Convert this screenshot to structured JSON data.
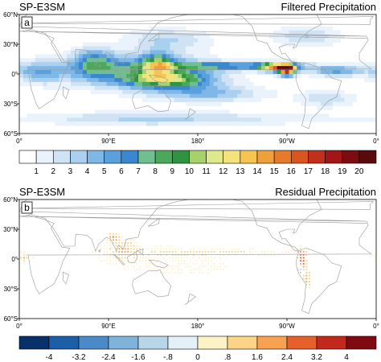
{
  "chart_data": [
    {
      "type": "heatmap",
      "panel_letter": "a",
      "left_title": "SP-E3SM",
      "right_title": "Filtered Precipitation",
      "x_ticks": [
        "0°",
        "90°E",
        "180°",
        "90°W",
        "0°"
      ],
      "y_ticks": [
        "60°N",
        "30°N",
        "0°",
        "30°S",
        "60°S"
      ],
      "colorbar_labels": [
        "1",
        "2",
        "3",
        "4",
        "5",
        "6",
        "7",
        "8",
        "9",
        "10",
        "11",
        "12",
        "13",
        "14",
        "15",
        "16",
        "17",
        "18",
        "19",
        "20"
      ],
      "colorbar_colors": [
        "#ffffff",
        "#eaf3fb",
        "#cfe3f5",
        "#a9d0ef",
        "#7fb8e6",
        "#5aa0dc",
        "#3b87cf",
        "#6fbf90",
        "#4ca85a",
        "#2f9440",
        "#a7d16b",
        "#dfe98c",
        "#f6e27a",
        "#f6c451",
        "#f0a03a",
        "#e67a2b",
        "#d9561f",
        "#c1301a",
        "#a11616",
        "#7d0c10",
        "#5a0a0c"
      ],
      "field": [
        {
          "lon": 120,
          "lat": 3,
          "sx": 55,
          "sy": 12,
          "v": 6
        },
        {
          "lon": 140,
          "lat": 10,
          "sx": 12,
          "sy": 8,
          "v": 7
        },
        {
          "lon": 150,
          "lat": -6,
          "sx": 30,
          "sy": 6,
          "v": 8
        },
        {
          "lon": 210,
          "lat": 8,
          "sx": 55,
          "sy": 3,
          "v": 6
        },
        {
          "lon": 260,
          "lat": 7,
          "sx": 12,
          "sy": 3,
          "v": 12
        },
        {
          "lon": 270,
          "lat": 4,
          "sx": 6,
          "sy": 4,
          "v": 16
        },
        {
          "lon": 20,
          "lat": 2,
          "sx": 18,
          "sy": 8,
          "v": 4
        },
        {
          "lon": 320,
          "lat": 3,
          "sx": 20,
          "sy": 4,
          "v": 5
        },
        {
          "lon": 75,
          "lat": 12,
          "sx": 15,
          "sy": 10,
          "v": 5
        },
        {
          "lon": 150,
          "lat": 35,
          "sx": 30,
          "sy": 8,
          "v": 3
        },
        {
          "lon": 290,
          "lat": 38,
          "sx": 25,
          "sy": 8,
          "v": 3
        },
        {
          "lon": 190,
          "lat": -20,
          "sx": 40,
          "sy": 6,
          "v": 4
        },
        {
          "lon": 310,
          "lat": -25,
          "sx": 20,
          "sy": 6,
          "v": 3
        },
        {
          "lon": 200,
          "lat": -45,
          "sx": 90,
          "sy": 5,
          "v": 2
        },
        {
          "lon": 100,
          "lat": -45,
          "sx": 70,
          "sy": 5,
          "v": 2
        }
      ]
    },
    {
      "type": "heatmap",
      "panel_letter": "b",
      "left_title": "SP-E3SM",
      "right_title": "Residual Precipitation",
      "x_ticks": [
        "0°",
        "90°E",
        "180°",
        "90°W",
        "0°"
      ],
      "y_ticks": [
        "60°N",
        "30°N",
        "0°",
        "30°S",
        "60°S"
      ],
      "colorbar_labels": [
        "-4",
        "-3.2",
        "-2.4",
        "-1.6",
        "-.8",
        "0",
        ".8",
        "1.6",
        "2.4",
        "3.2",
        "4"
      ],
      "colorbar_colors": [
        "#08306b",
        "#1c5fa8",
        "#4a8bc7",
        "#80b3da",
        "#b7d6ea",
        "#e4eff6",
        "#fbf3c6",
        "#fcd487",
        "#f8a251",
        "#e6602c",
        "#c2281c",
        "#7f0a0f"
      ],
      "field": [
        {
          "lon": 120,
          "lat": 3,
          "sx": 45,
          "sy": 14,
          "v": 0.6
        },
        {
          "lon": 200,
          "lat": 7,
          "sx": 60,
          "sy": 3,
          "v": 0.9
        },
        {
          "lon": 185,
          "lat": -8,
          "sx": 35,
          "sy": 6,
          "v": 0.5
        },
        {
          "lon": 285,
          "lat": -2,
          "sx": 3,
          "sy": 8,
          "v": 3.6
        },
        {
          "lon": 283,
          "lat": -10,
          "sx": 2,
          "sy": 4,
          "v": -3.6
        },
        {
          "lon": 290,
          "lat": -20,
          "sx": 3,
          "sy": 6,
          "v": 2.0
        },
        {
          "lon": 95,
          "lat": 22,
          "sx": 4,
          "sy": 3,
          "v": 2.4
        },
        {
          "lon": 105,
          "lat": 10,
          "sx": 8,
          "sy": 6,
          "v": 1.2
        },
        {
          "lon": 5,
          "lat": 2,
          "sx": 5,
          "sy": 4,
          "v": 1.6
        }
      ]
    }
  ]
}
